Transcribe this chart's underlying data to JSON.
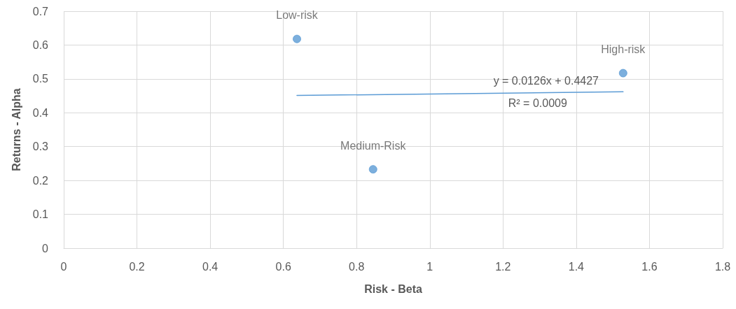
{
  "chart_data": {
    "type": "scatter",
    "xlabel": "Risk - Beta",
    "ylabel": "Returns - Alpha",
    "xlim": [
      0,
      1.8
    ],
    "xticks": [
      0,
      0.2,
      0.4,
      0.6,
      0.8,
      1,
      1.2,
      1.4,
      1.6,
      1.8
    ],
    "ylim": [
      0,
      0.7
    ],
    "yticks": [
      0,
      0.1,
      0.2,
      0.3,
      0.4,
      0.5,
      0.6,
      0.7
    ],
    "grid": true,
    "marker": "circle",
    "series": [
      {
        "color": "#5b9bd5",
        "x": [
          0.637,
          0.845,
          1.528
        ],
        "values": [
          0.618,
          0.233,
          0.517
        ],
        "value_labels": [
          "Low-risk",
          "Medium-Risk",
          "High-risk"
        ]
      },
      {
        "type": "line",
        "color": "#5b9bd5",
        "line_style": "solid",
        "marker": "none",
        "x": [
          0.637,
          1.528
        ],
        "values": [
          0.451,
          0.462
        ]
      }
    ],
    "annotations": [
      "y = 0.0126x + 0.4427",
      "R² = 0.0009"
    ]
  }
}
